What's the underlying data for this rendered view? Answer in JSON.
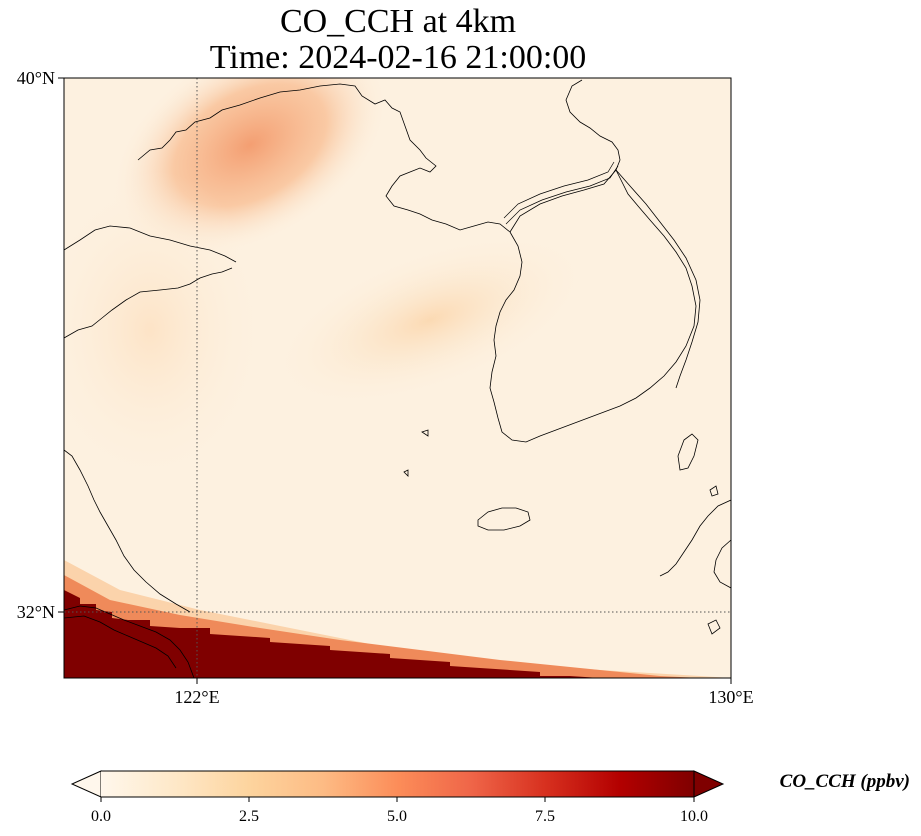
{
  "title": {
    "line1": "CO_CCH at 4km",
    "line2": "Time: 2024-02-16 21:00:00"
  },
  "axes": {
    "lat_labels": [
      "40°N",
      "32°N"
    ],
    "lon_labels": [
      "122°E",
      "130°E"
    ],
    "lon_range": [
      120,
      130
    ],
    "lat_range": [
      31,
      40
    ],
    "gridlines": true,
    "gridline_style": "dotted"
  },
  "colorbar": {
    "label": "CO_CCH (ppbv)",
    "ticks": [
      "0.0",
      "2.5",
      "5.0",
      "7.5",
      "10.0"
    ],
    "range": [
      0,
      10
    ],
    "colormap": "OrRd",
    "extend": "both",
    "colors": [
      "#fff7ec",
      "#fee8c8",
      "#fdd49e",
      "#fdbb84",
      "#fc8d59",
      "#ef6548",
      "#d7301f",
      "#b30000",
      "#7f0000"
    ]
  },
  "field_colors": {
    "background": "#fdf1e0",
    "plume_light": "#fbdcb8",
    "plume_north": "#f6a072",
    "high": "#7f0000",
    "coastline": "#000000"
  }
}
